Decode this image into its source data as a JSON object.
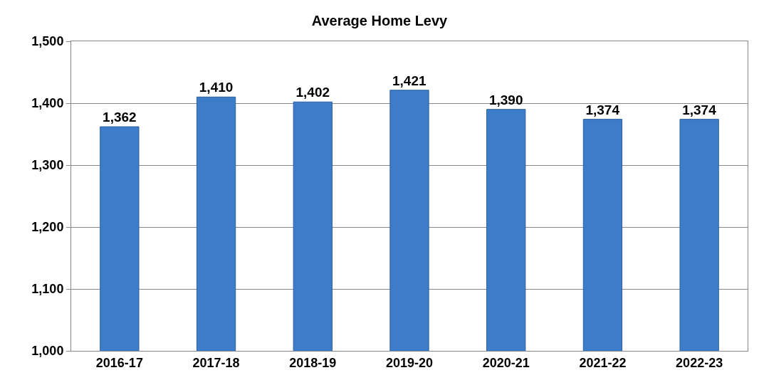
{
  "chart_data": {
    "type": "bar",
    "title": "Average Home Levy",
    "categories": [
      "2016-17",
      "2017-18",
      "2018-19",
      "2019-20",
      "2020-21",
      "2021-22",
      "2022-23"
    ],
    "values": [
      1362,
      1410,
      1402,
      1421,
      1390,
      1374,
      1374
    ],
    "value_labels": [
      "1,362",
      "1,410",
      "1,402",
      "1,421",
      "1,390",
      "1,374",
      "1,374"
    ],
    "color": "#3d7cc9",
    "ylim": [
      1000,
      1500
    ],
    "yticks": [
      {
        "value": 1000,
        "label": "1,000"
      },
      {
        "value": 1100,
        "label": "1,100"
      },
      {
        "value": 1200,
        "label": "1,200"
      },
      {
        "value": 1300,
        "label": "1,300"
      },
      {
        "value": 1400,
        "label": "1,400"
      },
      {
        "value": 1500,
        "label": "1,500"
      }
    ],
    "grid": "y"
  }
}
